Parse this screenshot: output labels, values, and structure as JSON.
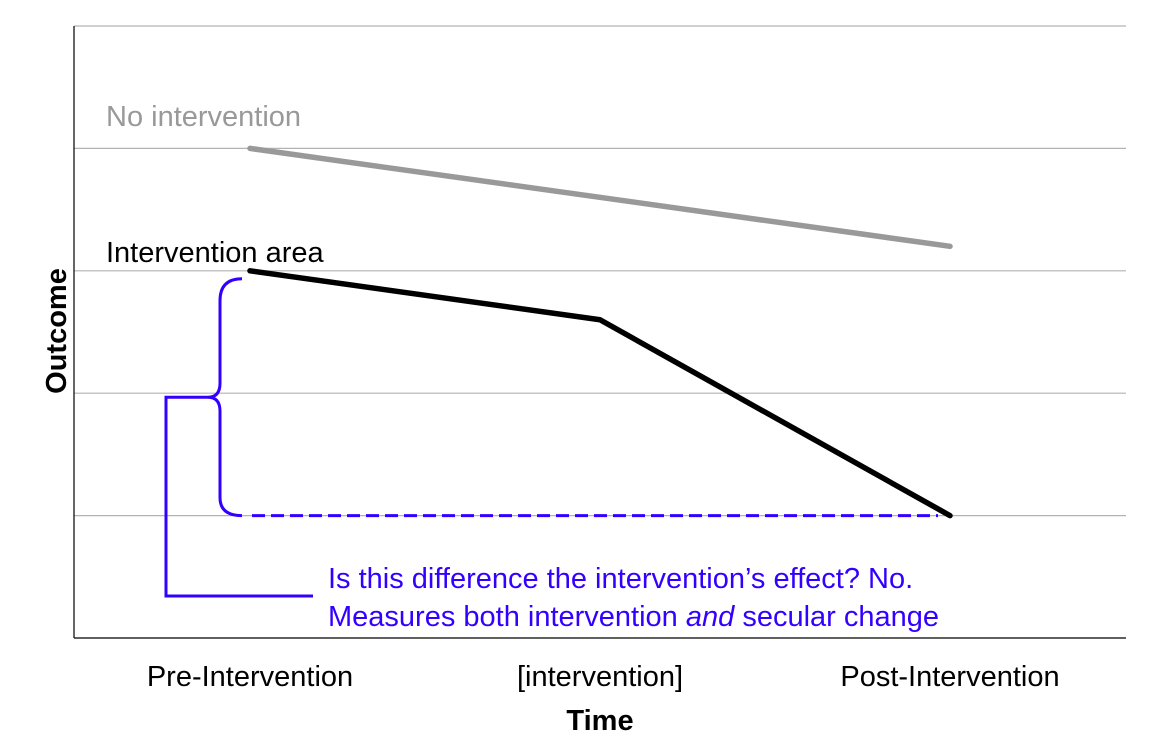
{
  "chart_data": {
    "type": "line",
    "title": "",
    "xlabel": "Time",
    "ylabel": "Outcome",
    "categories": [
      "Pre-Intervention",
      "[intervention]",
      "Post-Intervention"
    ],
    "ylim": [
      0,
      5
    ],
    "yticks": [
      0,
      1,
      2,
      3,
      4,
      5
    ],
    "grid": true,
    "series": [
      {
        "name": "No intervention",
        "color": "#999999",
        "points": [
          {
            "x": "Pre-Intervention",
            "y": 4.0
          },
          {
            "x": "Post-Intervention",
            "y": 3.2
          }
        ]
      },
      {
        "name": "Intervention area",
        "color": "#000000",
        "points": [
          {
            "x": "Pre-Intervention",
            "y": 3.0
          },
          {
            "x": "[intervention]",
            "y": 2.6
          },
          {
            "x": "Post-Intervention",
            "y": 1.0
          }
        ]
      }
    ],
    "annotation": {
      "color": "#3300ff",
      "from_value": 3.0,
      "to_value": 1.0,
      "line1": "Is this difference the intervention’s effect? No.",
      "line2_before": "Measures both intervention ",
      "line2_emphasis": "and",
      "line2_after": " secular change"
    }
  }
}
